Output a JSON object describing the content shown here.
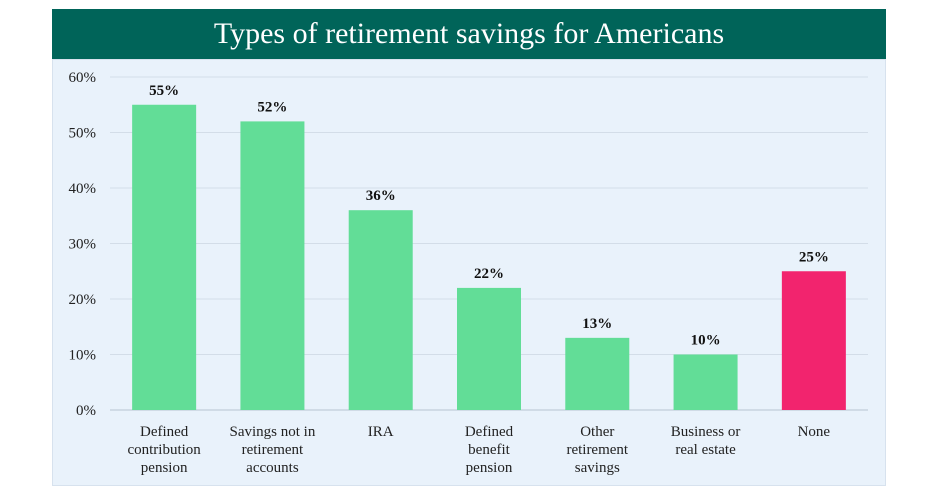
{
  "title": "Types of retirement savings for Americans",
  "colors": {
    "header_bg": "#006459",
    "bar": "#62dd97",
    "highlight_bar": "#f2246e",
    "panel_bg": "#e9f2fb"
  },
  "chart_data": {
    "type": "bar",
    "title": "Types of retirement savings for Americans",
    "categories": [
      [
        "Defined",
        "contribution",
        "pension"
      ],
      [
        "Savings not in",
        "retirement",
        "accounts"
      ],
      [
        "IRA"
      ],
      [
        "Defined",
        "benefit",
        "pension"
      ],
      [
        "Other",
        "retirement",
        "savings"
      ],
      [
        "Business or",
        "real estate"
      ],
      [
        "None"
      ]
    ],
    "values": [
      55,
      52,
      36,
      22,
      13,
      10,
      25
    ],
    "value_labels": [
      "55%",
      "52%",
      "36%",
      "22%",
      "13%",
      "10%",
      "25%"
    ],
    "highlight_index": 6,
    "ylim": [
      0,
      60
    ],
    "yticks": [
      0,
      10,
      20,
      30,
      40,
      50,
      60
    ],
    "ytick_labels": [
      "0%",
      "10%",
      "20%",
      "30%",
      "40%",
      "50%",
      "60%"
    ],
    "grid": true,
    "xlabel": "",
    "ylabel": ""
  }
}
